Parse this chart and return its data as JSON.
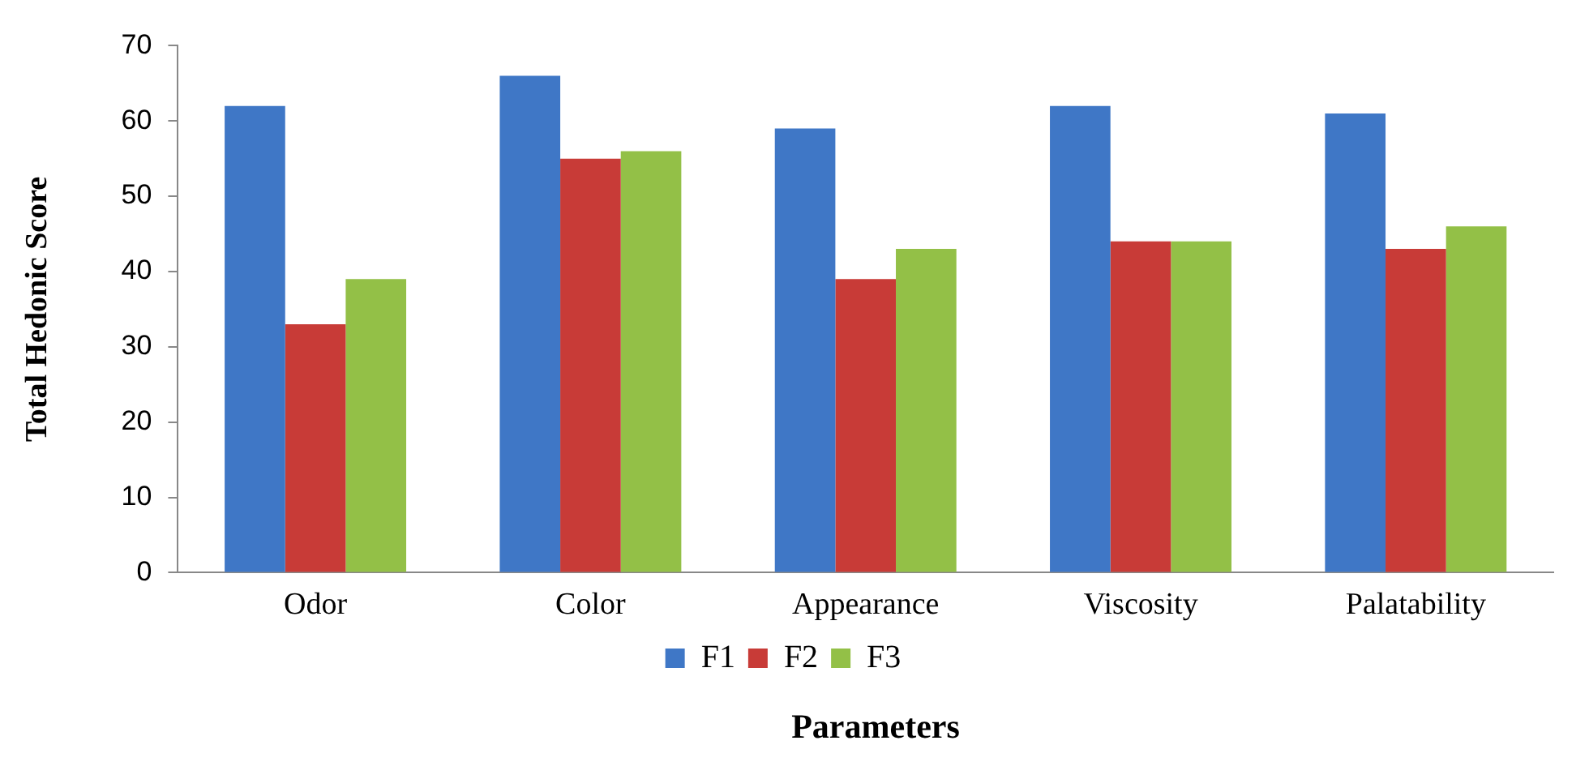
{
  "chart_data": {
    "type": "bar",
    "xlabel": "Parameters",
    "ylabel": "Total Hedonic Score",
    "categories": [
      "Odor",
      "Color",
      "Appearance",
      "Viscosity",
      "Palatability"
    ],
    "series": [
      {
        "name": "F1",
        "color": "#3f77c6",
        "values": [
          62,
          66,
          59,
          62,
          61
        ]
      },
      {
        "name": "F2",
        "color": "#c83b37",
        "values": [
          33,
          55,
          39,
          44,
          43
        ]
      },
      {
        "name": "F3",
        "color": "#93c047",
        "values": [
          39,
          56,
          43,
          44,
          46
        ]
      }
    ],
    "ylim": [
      0,
      70
    ],
    "yticks": [
      0,
      10,
      20,
      30,
      40,
      50,
      60,
      70
    ],
    "grid": false,
    "legend": "bottom"
  }
}
